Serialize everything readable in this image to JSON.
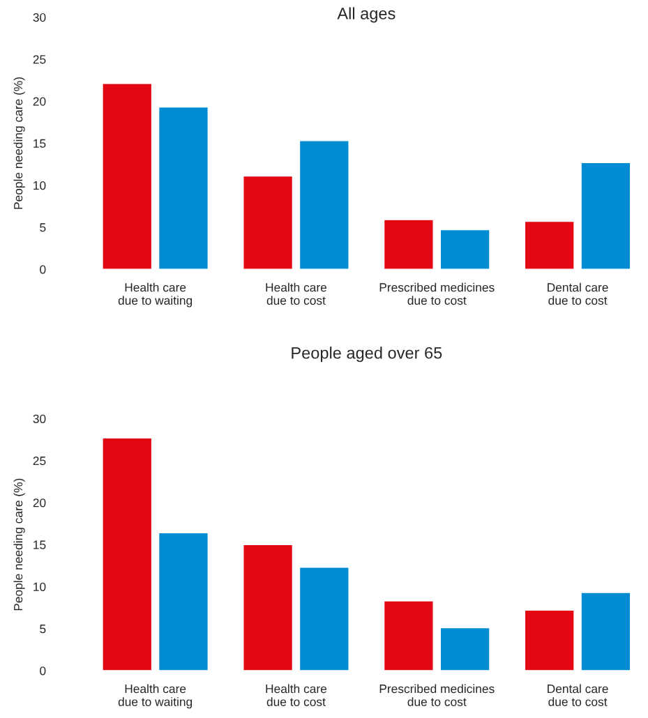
{
  "chart_data": [
    {
      "type": "bar",
      "title": "All ages",
      "ylabel": "People needing care (%)",
      "categories": [
        "Health care\ndue to waiting",
        "Health care\ndue to cost",
        "Prescribed medicines\ndue to cost",
        "Dental care\ndue to cost"
      ],
      "series": [
        {
          "color": "#e30613",
          "values": [
            22.1,
            11.1,
            5.9,
            5.7
          ]
        },
        {
          "color": "#008bd2",
          "values": [
            19.3,
            15.3,
            4.7,
            12.7
          ]
        }
      ],
      "ylim": [
        0,
        30
      ],
      "yticks": [
        0,
        5,
        10,
        15,
        20,
        25,
        30
      ],
      "grid": false,
      "legend": false
    },
    {
      "type": "bar",
      "title": "People aged over 65",
      "ylabel": "People needing care (%)",
      "categories": [
        "Health care\ndue to waiting",
        "Health care\ndue to cost",
        "Prescribed medicines\ndue to cost",
        "Dental care\ndue to cost"
      ],
      "series": [
        {
          "color": "#e30613",
          "values": [
            27.7,
            15.0,
            8.3,
            7.2
          ]
        },
        {
          "color": "#008bd2",
          "values": [
            16.4,
            12.3,
            5.1,
            9.3
          ]
        }
      ],
      "ylim": [
        0,
        30
      ],
      "yticks": [
        0,
        5,
        10,
        15,
        20,
        25,
        30
      ],
      "grid": false,
      "legend": false
    }
  ]
}
